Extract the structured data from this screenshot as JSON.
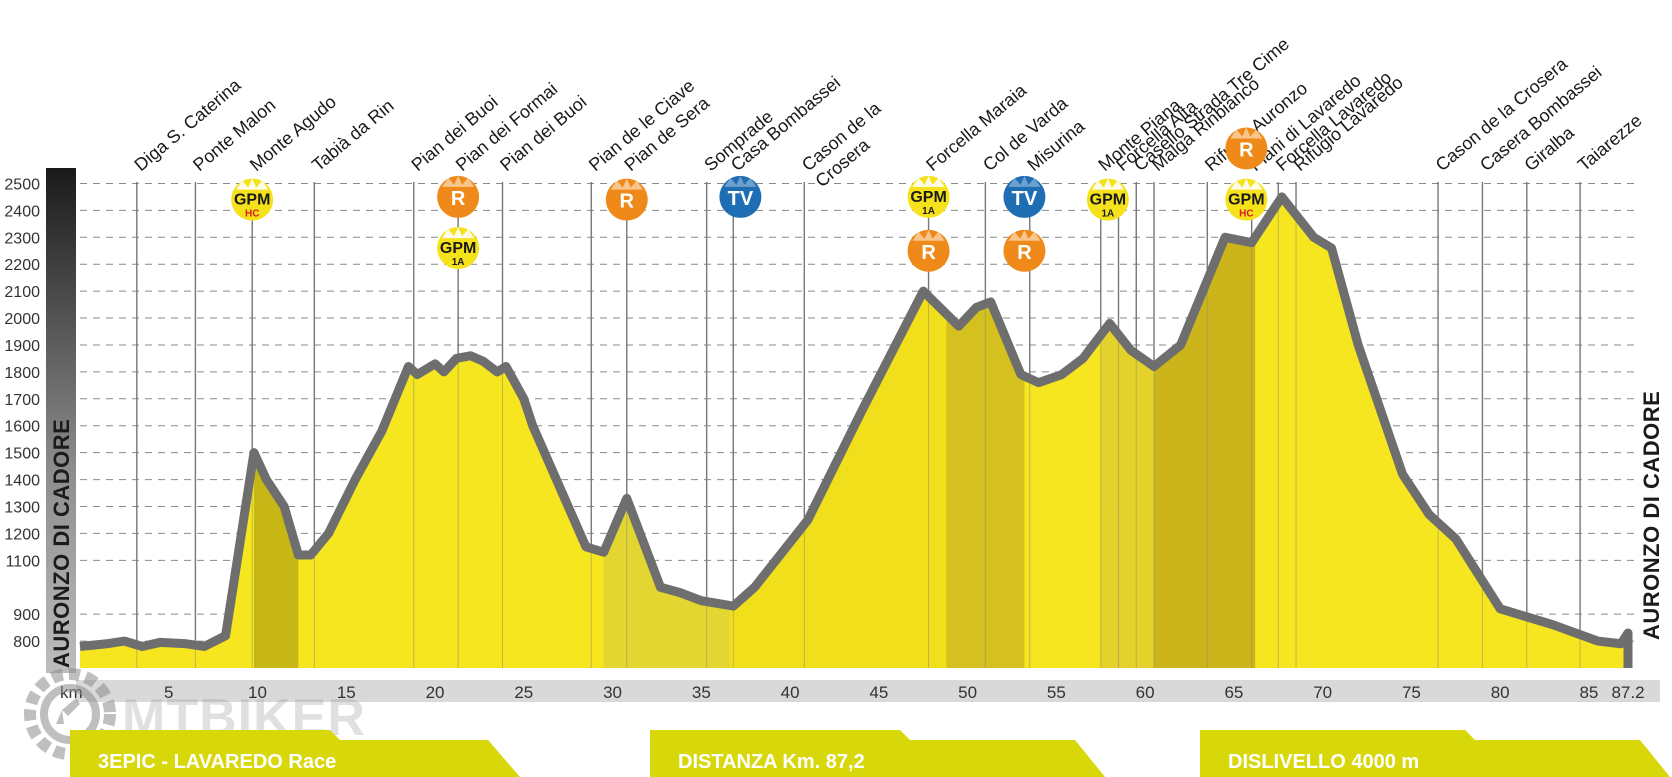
{
  "chart_data": {
    "type": "area",
    "title": "3EPIC - LAVAREDO Race",
    "xlabel": "km",
    "ylabel": "",
    "side_label_left": "AURONZO DI CADORE",
    "side_label_right": "AURONZO DI CADORE",
    "xlim": [
      0,
      87.2
    ],
    "ylim": [
      700,
      2550
    ],
    "x_ticks": [
      "5",
      "10",
      "15",
      "20",
      "25",
      "30",
      "35",
      "40",
      "45",
      "50",
      "55",
      "60",
      "65",
      "70",
      "75",
      "80",
      "85",
      "87.2"
    ],
    "x_tick_values": [
      5,
      10,
      15,
      20,
      25,
      30,
      35,
      40,
      45,
      50,
      55,
      60,
      65,
      70,
      75,
      80,
      85,
      87.2
    ],
    "y_ticks": [
      800,
      900,
      1100,
      1200,
      1300,
      1400,
      1500,
      1600,
      1700,
      1800,
      1900,
      2000,
      2100,
      2200,
      2300,
      2400,
      2500
    ],
    "profile": [
      [
        0,
        780
      ],
      [
        1.5,
        790
      ],
      [
        2.5,
        800
      ],
      [
        3.5,
        780
      ],
      [
        4.5,
        795
      ],
      [
        6,
        790
      ],
      [
        7,
        780
      ],
      [
        8.2,
        820
      ],
      [
        9.8,
        1500
      ],
      [
        10.5,
        1400
      ],
      [
        11.5,
        1300
      ],
      [
        12.3,
        1120
      ],
      [
        13,
        1120
      ],
      [
        14,
        1200
      ],
      [
        15.5,
        1400
      ],
      [
        17,
        1580
      ],
      [
        18.5,
        1820
      ],
      [
        19,
        1790
      ],
      [
        20,
        1830
      ],
      [
        20.5,
        1800
      ],
      [
        21.2,
        1850
      ],
      [
        22,
        1860
      ],
      [
        22.7,
        1840
      ],
      [
        23.5,
        1800
      ],
      [
        24,
        1820
      ],
      [
        25,
        1700
      ],
      [
        25.5,
        1600
      ],
      [
        26.5,
        1450
      ],
      [
        27.5,
        1300
      ],
      [
        28.5,
        1150
      ],
      [
        29.5,
        1130
      ],
      [
        30.8,
        1330
      ],
      [
        32.7,
        1000
      ],
      [
        33.8,
        980
      ],
      [
        35,
        950
      ],
      [
        36.8,
        930
      ],
      [
        38,
        1000
      ],
      [
        41,
        1250
      ],
      [
        44,
        1650
      ],
      [
        47.5,
        2100
      ],
      [
        49.5,
        1970
      ],
      [
        50.5,
        2040
      ],
      [
        51.3,
        2060
      ],
      [
        53,
        1790
      ],
      [
        54,
        1760
      ],
      [
        55.3,
        1790
      ],
      [
        56.5,
        1850
      ],
      [
        58,
        1980
      ],
      [
        59.2,
        1880
      ],
      [
        60.5,
        1820
      ],
      [
        62,
        1900
      ],
      [
        64.5,
        2300
      ],
      [
        66,
        2280
      ],
      [
        67.7,
        2450
      ],
      [
        69.5,
        2300
      ],
      [
        70.5,
        2260
      ],
      [
        72,
        1900
      ],
      [
        74.5,
        1420
      ],
      [
        76,
        1270
      ],
      [
        77.5,
        1180
      ],
      [
        80,
        920
      ],
      [
        81,
        900
      ],
      [
        83,
        860
      ],
      [
        85.5,
        800
      ],
      [
        86.8,
        790
      ],
      [
        87.2,
        830
      ]
    ],
    "shaded_bands": [
      {
        "from": 9.8,
        "to": 12.3,
        "color": "#c6b717"
      },
      {
        "from": 29.5,
        "to": 36.6,
        "color": "#e3d630"
      },
      {
        "from": 36.6,
        "to": 48.8,
        "color": "#f2df1c"
      },
      {
        "from": 48.8,
        "to": 53.2,
        "color": "#d4c01f"
      },
      {
        "from": 57.5,
        "to": 60.5,
        "color": "#e4d22a"
      },
      {
        "from": 60.5,
        "to": 66.2,
        "color": "#cbb51a"
      }
    ],
    "places": [
      {
        "name": "Diga S. Caterina",
        "km": 3.2
      },
      {
        "name": "Ponte Malon",
        "km": 6.5
      },
      {
        "name": "Monte Agudo",
        "km": 9.7
      },
      {
        "name": "Tabià da Rin",
        "km": 13.2
      },
      {
        "name": "Pian dei Buoi",
        "km": 18.8
      },
      {
        "name": "Pian dei Formai",
        "km": 21.3
      },
      {
        "name": "Pian dei Buoi",
        "km": 23.8
      },
      {
        "name": "Pian de le Ciave",
        "km": 28.8
      },
      {
        "name": "Pian de Sera",
        "km": 30.8
      },
      {
        "name": "Somprade",
        "km": 35.3
      },
      {
        "name": "Casa Bombassei",
        "km": 36.8
      },
      {
        "name": "Cason de la\nCrosera",
        "km": 40.8
      },
      {
        "name": "Forcella Maraia",
        "km": 47.8
      },
      {
        "name": "Col de Varda",
        "km": 51
      },
      {
        "name": "Misurina",
        "km": 53.5
      },
      {
        "name": "Monte Piana",
        "km": 57.5
      },
      {
        "name": "Forcella Alta",
        "km": 58.5
      },
      {
        "name": "Casello Strada Tre Cime",
        "km": 59.5
      },
      {
        "name": "Malga Rinbianco",
        "km": 60.5
      },
      {
        "name": "Rifugio Auronzo",
        "km": 63.5
      },
      {
        "name": "Piani di Lavaredo",
        "km": 66
      },
      {
        "name": "Forcella Lavaredo",
        "km": 67.5
      },
      {
        "name": "Rifugio Lavaredo",
        "km": 68.5
      },
      {
        "name": "Cason de la Crosera",
        "km": 76.5
      },
      {
        "name": "Casera Bombassei",
        "km": 79
      },
      {
        "name": "Giralba",
        "km": 81.5
      },
      {
        "name": "Taiarezze",
        "km": 84.5
      }
    ],
    "badges": [
      {
        "km": 9.7,
        "type": "GPM",
        "sub": "HC",
        "level": 2440
      },
      {
        "km": 21.3,
        "type": "R",
        "level": 2450
      },
      {
        "km": 21.3,
        "type": "GPM",
        "sub": "1A",
        "level": 2260
      },
      {
        "km": 30.8,
        "type": "R",
        "level": 2440
      },
      {
        "km": 37.2,
        "type": "TV",
        "level": 2450
      },
      {
        "km": 47.8,
        "type": "GPM",
        "sub": "1A",
        "level": 2450
      },
      {
        "km": 47.8,
        "type": "R",
        "level": 2250
      },
      {
        "km": 53.2,
        "type": "TV",
        "level": 2450
      },
      {
        "km": 53.2,
        "type": "R",
        "level": 2250
      },
      {
        "km": 57.9,
        "type": "GPM",
        "sub": "1A",
        "level": 2440
      },
      {
        "km": 65.7,
        "type": "R",
        "level": 2630
      },
      {
        "km": 65.7,
        "type": "GPM",
        "sub": "HC",
        "level": 2440
      }
    ],
    "banners": [
      "3EPIC - LAVAREDO Race",
      "DISTANZA Km. 87,2",
      "DISLIVELLO 4000 m"
    ]
  },
  "badge_labels": {
    "gpm": "GPM",
    "r": "R",
    "tv": "TV"
  },
  "watermark": "MTBIKER",
  "colors": {
    "fill": "#f5e61f",
    "line": "#6e6e6e",
    "gpm": "#f5e21a",
    "refuel": "#ef8a1a",
    "tv": "#1f6eb4",
    "banner": "#d8d70a"
  }
}
